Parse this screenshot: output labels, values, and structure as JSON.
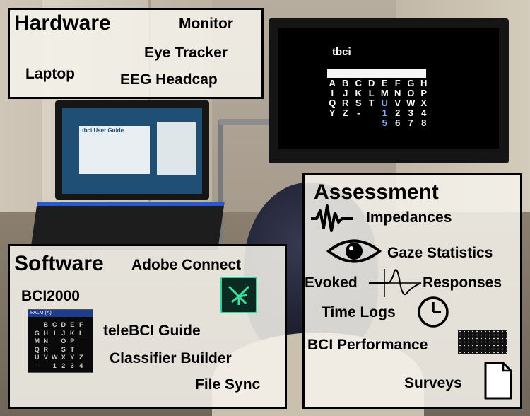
{
  "hardware": {
    "title": "Hardware",
    "items": [
      "Monitor",
      "Eye Tracker",
      "Laptop",
      "EEG Headcap"
    ]
  },
  "software": {
    "title": "Software",
    "items": [
      "Adobe Connect",
      "BCI2000",
      "teleBCI Guide",
      "Classifier Builder",
      "File Sync"
    ]
  },
  "assessment": {
    "title": "Assessment",
    "items": [
      "Impedances",
      "Gaze Statistics",
      "Evoked",
      "Responses",
      "Time Logs",
      "BCI Performance",
      "Surveys"
    ]
  },
  "monitor_screen": {
    "logo": "tbci",
    "speller_rows": [
      [
        "A",
        "B",
        "C",
        "D",
        "E",
        "F",
        "G",
        "H"
      ],
      [
        "I",
        "J",
        "K",
        "L",
        "M",
        "N",
        "O",
        "P"
      ],
      [
        "Q",
        "R",
        "S",
        "T",
        "U",
        "V",
        "W",
        "X"
      ],
      [
        "Y",
        "Z",
        "-",
        "",
        "1",
        "2",
        "3",
        "4"
      ],
      [
        "",
        "",
        "",
        "",
        "5",
        "6",
        "7",
        "8"
      ]
    ]
  },
  "laptop_screen": {
    "window_title": "tbci User Guide"
  },
  "bci_thumbnail": {
    "title": "PALM (A)",
    "rows": [
      [
        "",
        "B",
        "C",
        "D",
        "E",
        "F"
      ],
      [
        "G",
        "H",
        "I",
        "J",
        "K",
        "L"
      ],
      [
        "M",
        "N",
        "",
        "O",
        "P",
        ""
      ],
      [
        "Q",
        "R",
        "",
        "S",
        "T",
        ""
      ],
      [
        "U",
        "V",
        "W",
        "X",
        "Y",
        "Z"
      ],
      [
        "-",
        "",
        "1",
        "2",
        "3",
        "4"
      ]
    ]
  },
  "icons": {
    "impedance": "waveform-icon",
    "gaze": "eye-icon",
    "evoked": "evoked-response-icon",
    "time_logs": "clock-icon",
    "bci_performance": "grid-icon",
    "surveys": "document-icon",
    "adobe_connect": "adobe-connect-icon"
  }
}
